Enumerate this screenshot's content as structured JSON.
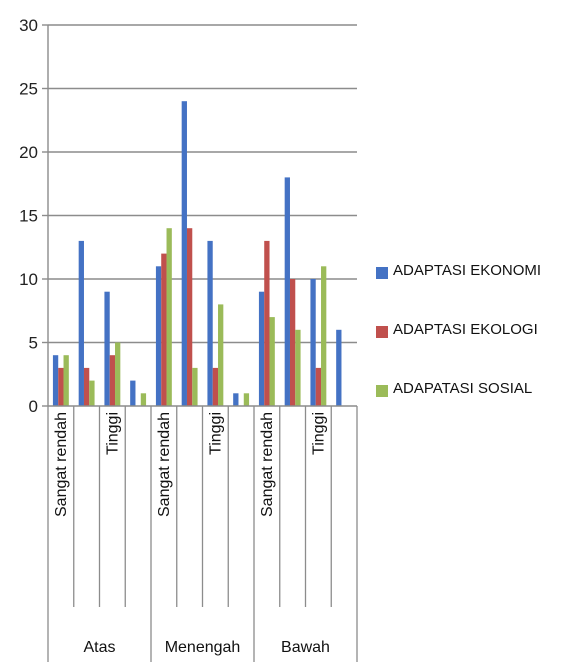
{
  "chart_data": {
    "type": "bar",
    "ylim": [
      0,
      30
    ],
    "yticks": [
      "0",
      "5",
      "10",
      "15",
      "20",
      "25",
      "30"
    ],
    "groups": [
      {
        "label": "Atas",
        "categories": [
          "Sangat rendah",
          "",
          "Tinggi",
          ""
        ]
      },
      {
        "label": "Menengah",
        "categories": [
          "Sangat rendah",
          "",
          "Tinggi",
          ""
        ]
      },
      {
        "label": "Bawah",
        "categories": [
          "Sangat rendah",
          "",
          "Tinggi",
          ""
        ]
      }
    ],
    "series": [
      {
        "name": "ADAPTASI EKONOMI",
        "color": "#4472C4",
        "values": [
          4,
          13,
          9,
          2,
          11,
          24,
          13,
          1,
          9,
          18,
          10,
          6
        ]
      },
      {
        "name": "ADAPTASI EKOLOGI",
        "color": "#C0504D",
        "values": [
          3,
          3,
          4,
          0,
          12,
          14,
          3,
          0,
          13,
          10,
          3,
          0
        ]
      },
      {
        "name": "ADAPATASI SOSIAL",
        "color": "#9BBB59",
        "values": [
          4,
          2,
          5,
          1,
          14,
          3,
          8,
          1,
          7,
          6,
          11,
          0
        ]
      }
    ],
    "grid": true,
    "legend_position": "right"
  }
}
